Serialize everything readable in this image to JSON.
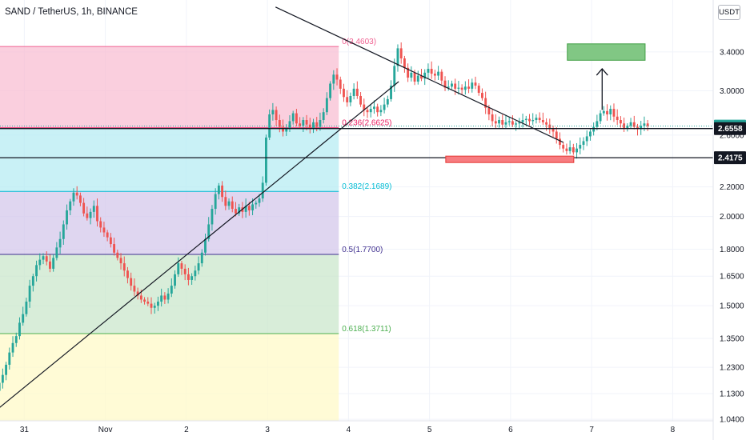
{
  "header": {
    "symbol_title": "SAND / TetherUS, 1h, BINANCE",
    "currency": "USDT"
  },
  "colors": {
    "up": "#26a69a",
    "down": "#ef5350",
    "trend_line": "#131722",
    "target_box": "#81c784",
    "support_box": "#f77c80"
  },
  "chart_data": {
    "type": "candlestick",
    "title": "SAND / TetherUS, 1h, BINANCE",
    "y_scale": "log",
    "ylim": [
      1.035,
      4.02
    ],
    "xlim": [
      -0.3,
      8.5
    ],
    "x_ticks": [
      {
        "x": 0,
        "label": "31"
      },
      {
        "x": 1,
        "label": "Nov"
      },
      {
        "x": 2,
        "label": "2"
      },
      {
        "x": 3,
        "label": "3"
      },
      {
        "x": 4,
        "label": "4"
      },
      {
        "x": 5,
        "label": "5"
      },
      {
        "x": 6,
        "label": "6"
      },
      {
        "x": 7,
        "label": "7"
      },
      {
        "x": 8,
        "label": "8"
      }
    ],
    "y_ticks": [
      "3.4000",
      "3.0000",
      "2.6000",
      "2.2000",
      "2.0000",
      "1.8000",
      "1.6500",
      "1.5000",
      "1.3500",
      "1.2300",
      "1.1300",
      "1.0400"
    ],
    "price_labels": [
      {
        "value": 2.6765,
        "label": "2.6765",
        "style": "last-price"
      },
      {
        "value": 2.6558,
        "label": "2.6558",
        "style": "horizontal-line"
      },
      {
        "value": 2.4175,
        "label": "2.4175",
        "style": "horizontal-line"
      }
    ],
    "fib_retracement": {
      "x_start": -0.35,
      "x_end": 3.88,
      "levels": [
        {
          "ratio": "0",
          "price": 3.4603,
          "label": "0(3.4603)",
          "color": "#f06292",
          "fill": "#f8bbd0"
        },
        {
          "ratio": "0.236",
          "price": 2.6625,
          "label": "0.236(2.6625)",
          "color": "#e91e63",
          "fill": "#b2ebf2"
        },
        {
          "ratio": "0.382",
          "price": 2.1689,
          "label": "0.382(2.1689)",
          "color": "#00bcd4",
          "fill": "#d1c4e9"
        },
        {
          "ratio": "0.5",
          "price": 1.77,
          "label": "0.5(1.7700)",
          "color": "#3f2f8f",
          "fill": "#c8e6c9"
        },
        {
          "ratio": "0.618",
          "price": 1.3711,
          "label": "0.618(1.3711)",
          "color": "#4caf50",
          "fill": "#fff9c4"
        }
      ]
    },
    "horizontal_lines": [
      2.6558,
      2.4175
    ],
    "drawings": {
      "ascending_trendline": [
        [
          -0.35,
          1.07
        ],
        [
          4.62,
          3.09
        ]
      ],
      "descending_trendline": [
        [
          3.1,
          3.93
        ],
        [
          6.65,
          2.54
        ]
      ],
      "support_zone": {
        "x": [
          5.2,
          6.78
        ],
        "price": [
          2.43,
          2.38
        ]
      },
      "target_zone": {
        "x": [
          6.7,
          7.66
        ],
        "price": [
          3.49,
          3.31
        ]
      },
      "arrow": {
        "x": 7.13,
        "from": 2.82,
        "to": 3.22
      }
    },
    "candles_per_day": 24,
    "first_candle_day": -0.35,
    "closes": [
      1.14,
      1.17,
      1.2,
      1.24,
      1.29,
      1.33,
      1.36,
      1.42,
      1.46,
      1.52,
      1.6,
      1.65,
      1.71,
      1.74,
      1.76,
      1.73,
      1.69,
      1.75,
      1.81,
      1.86,
      1.95,
      2.04,
      2.1,
      2.16,
      2.14,
      2.09,
      2.02,
      1.99,
      2.03,
      2.07,
      1.97,
      1.93,
      1.9,
      1.87,
      1.83,
      1.78,
      1.75,
      1.72,
      1.68,
      1.64,
      1.6,
      1.57,
      1.55,
      1.53,
      1.52,
      1.51,
      1.49,
      1.5,
      1.52,
      1.55,
      1.53,
      1.56,
      1.6,
      1.66,
      1.72,
      1.69,
      1.66,
      1.63,
      1.65,
      1.68,
      1.72,
      1.78,
      1.86,
      1.95,
      2.05,
      2.15,
      2.21,
      2.13,
      2.07,
      2.1,
      2.05,
      2.02,
      2.06,
      2.03,
      2.07,
      2.04,
      2.08,
      2.09,
      2.12,
      2.23,
      2.58,
      2.78,
      2.82,
      2.73,
      2.67,
      2.63,
      2.66,
      2.72,
      2.79,
      2.7,
      2.68,
      2.73,
      2.69,
      2.66,
      2.71,
      2.67,
      2.73,
      2.8,
      2.93,
      3.07,
      3.16,
      3.11,
      3.02,
      2.94,
      2.89,
      2.95,
      3.02,
      2.95,
      2.87,
      2.82,
      2.8,
      2.83,
      2.85,
      2.8,
      2.82,
      2.87,
      2.92,
      3.05,
      3.25,
      3.44,
      3.33,
      3.23,
      3.13,
      3.18,
      3.09,
      3.15,
      3.12,
      3.18,
      3.22,
      3.17,
      3.15,
      3.19,
      3.1,
      3.03,
      3.04,
      3.07,
      3.02,
      3.03,
      3.01,
      3.04,
      3.02,
      3.08,
      3.05,
      2.98,
      2.93,
      2.84,
      2.78,
      2.72,
      2.7,
      2.73,
      2.69,
      2.71,
      2.72,
      2.69,
      2.7,
      2.71,
      2.73,
      2.74,
      2.72,
      2.73,
      2.75,
      2.73,
      2.71,
      2.69,
      2.66,
      2.63,
      2.57,
      2.52,
      2.49,
      2.47,
      2.5,
      2.46,
      2.49,
      2.52,
      2.55,
      2.59,
      2.63,
      2.67,
      2.72,
      2.79,
      2.81,
      2.78,
      2.83,
      2.76,
      2.73,
      2.7,
      2.66,
      2.68,
      2.71,
      2.67,
      2.65,
      2.68,
      2.7,
      2.6765
    ]
  }
}
